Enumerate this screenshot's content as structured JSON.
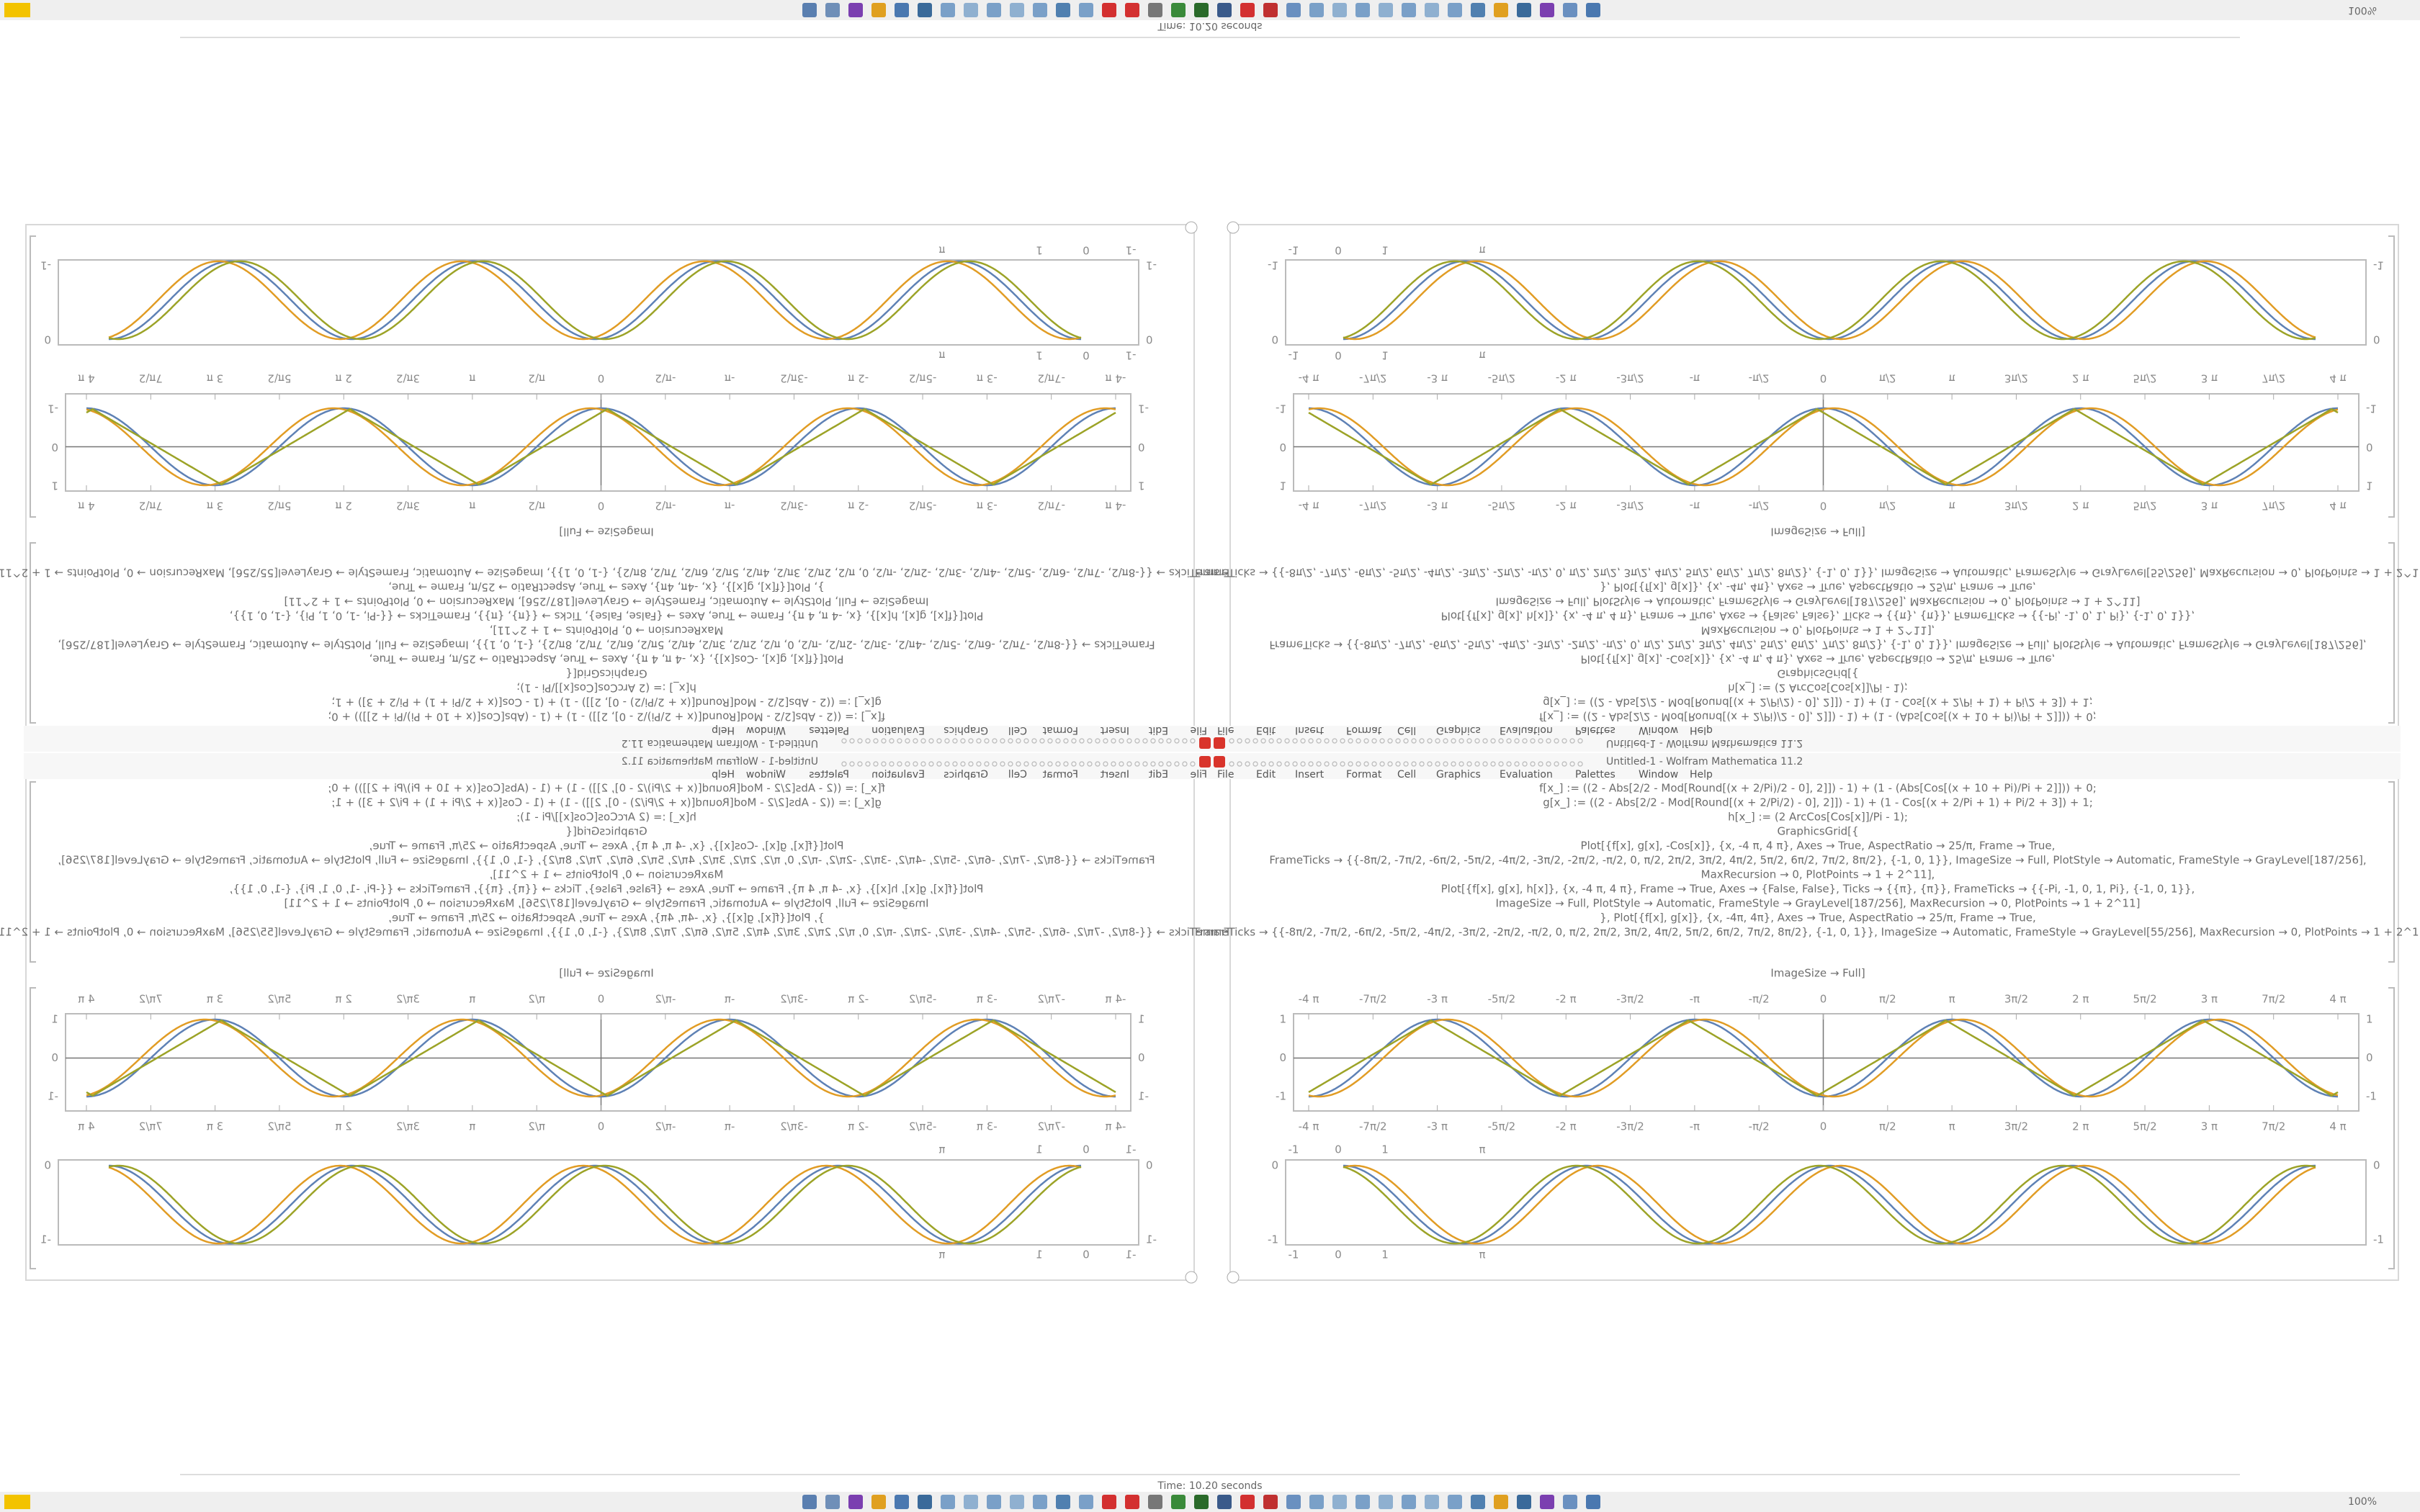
{
  "window": {
    "title": "Time: 10.20 seconds",
    "notebook_title": "Untitled-1 - Wolfram Mathematica 11.2",
    "zoom": "100%",
    "menu": [
      "File",
      "Edit",
      "Insert",
      "Format",
      "Cell",
      "Graphics",
      "Evaluation",
      "Palettes",
      "Window",
      "Help"
    ]
  },
  "notebook": {
    "code": [
      "f[x_] := ((2 - Abs[2/2 - Mod[Round[(x + 2/Pi)/2 - 0], 2]]) - 1) + (1 - (Abs[Cos[(x + 10 + Pi)/Pi + 2]])) + 0;",
      "g[x_] := ((2 - Abs[2/2 - Mod[Round[(x + 2/Pi/2) - 0], 2]]) - 1) + (1 - Cos[(x + 2/Pi + 1) + Pi/2 + 3]) + 1;",
      "h[x_] := (2 ArcCos[Cos[x]]/Pi - 1);",
      "GraphicsGrid[{",
      "Plot[{f[x], g[x], -Cos[x]}, {x, -4 π, 4 π}, Axes → True, AspectRatio → 25/π, Frame → True,",
      "FrameTicks → {{-8π/2, -7π/2, -6π/2, -5π/2, -4π/2, -3π/2, -2π/2, -π/2, 0, π/2, 2π/2, 3π/2, 4π/2, 5π/2, 6π/2, 7π/2, 8π/2}, {-1, 0, 1}}, ImageSize → Full, PlotStyle → Automatic, FrameStyle → GrayLevel[187/256],",
      "MaxRecursion → 0, PlotPoints → 1 + 2^11],",
      "Plot[{f[x], g[x], h[x]}, {x, -4 π, 4 π}, Frame → True, Axes → {False, False}, Ticks → {{π}, {π}}, FrameTicks → {{-Pi, -1, 0, 1, Pi}, {-1, 0, 1}},",
      "ImageSize → Full, PlotStyle → Automatic, FrameStyle → GrayLevel[187/256], MaxRecursion → 0, PlotPoints → 1 + 2^11]",
      "}, Plot[{f[x], g[x]}, {x, -4π, 4π}, Axes → True, AspectRatio → 25/π, Frame → True,",
      "FrameTicks → {{-8π/2, -7π/2, -6π/2, -5π/2, -4π/2, -3π/2, -2π/2, -π/2, 0, π/2, 2π/2, 3π/2, 4π/2, 5π/2, 6π/2, 7π/2, 8π/2}, {-1, 0, 1}}, ImageSize → Automatic, FrameStyle → GrayLevel[55/256], MaxRecursion → 0, PlotPoints → 1 + 2^11]}]"
    ],
    "closing": "ImageSize → Full]",
    "plot1": {
      "xtick_labels": [
        "-4 π",
        "-7π/2",
        "-3 π",
        "-5π/2",
        "-2 π",
        "-3π/2",
        "-π",
        "-π/2",
        "0",
        "π/2",
        "π",
        "3π/2",
        "2 π",
        "5π/2",
        "3 π",
        "7π/2",
        "4 π"
      ],
      "ytick_labels": [
        "1",
        "0",
        "-1"
      ]
    },
    "plot2": {
      "xtick_labels": [
        "-1",
        "0",
        "1",
        "π"
      ],
      "ytick_labels": [
        "0",
        "-1"
      ]
    }
  }
}
